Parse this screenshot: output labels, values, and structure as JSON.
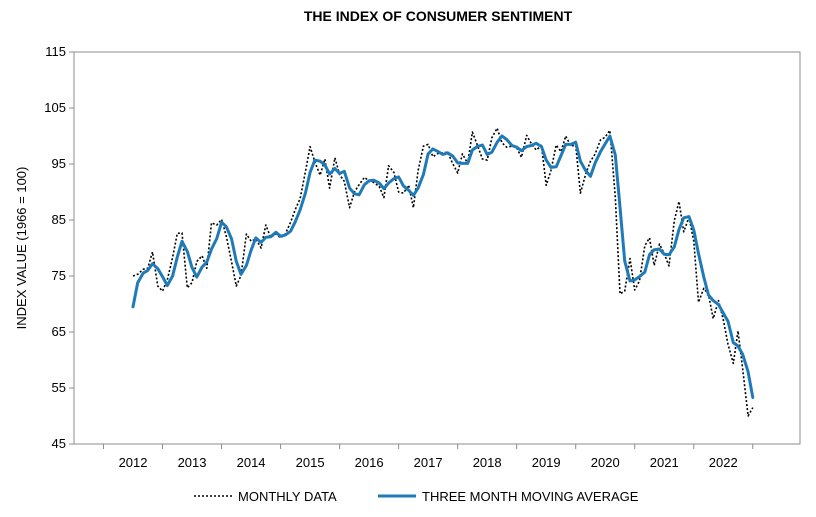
{
  "chart_data": {
    "type": "line",
    "title": "THE INDEX OF CONSUMER SENTIMENT",
    "ylabel": "INDEX VALUE (1966 = 100)",
    "xlabel": "",
    "ylim": [
      45,
      115
    ],
    "yticks": [
      45,
      55,
      65,
      75,
      85,
      95,
      105,
      115
    ],
    "xlim": [
      2011,
      2023.3
    ],
    "xticks": [
      2012,
      2013,
      2014,
      2015,
      2016,
      2017,
      2018,
      2019,
      2020,
      2021,
      2022
    ],
    "grid": false,
    "legend_position": "bottom",
    "series": [
      {
        "name": "MONTHLY DATA",
        "style": "dotted",
        "color": "#000000",
        "points": [
          [
            2012.0,
            75.0
          ],
          [
            2012.08,
            75.3
          ],
          [
            2012.17,
            76.2
          ],
          [
            2012.25,
            76.4
          ],
          [
            2012.33,
            79.3
          ],
          [
            2012.42,
            73.2
          ],
          [
            2012.5,
            72.3
          ],
          [
            2012.58,
            74.3
          ],
          [
            2012.67,
            78.3
          ],
          [
            2012.75,
            82.6
          ],
          [
            2012.83,
            82.7
          ],
          [
            2012.92,
            72.9
          ],
          [
            2013.0,
            73.8
          ],
          [
            2013.08,
            77.6
          ],
          [
            2013.17,
            78.6
          ],
          [
            2013.25,
            76.4
          ],
          [
            2013.33,
            84.5
          ],
          [
            2013.42,
            84.1
          ],
          [
            2013.5,
            85.1
          ],
          [
            2013.58,
            82.1
          ],
          [
            2013.67,
            77.5
          ],
          [
            2013.75,
            73.2
          ],
          [
            2013.83,
            75.1
          ],
          [
            2013.92,
            82.5
          ],
          [
            2014.0,
            81.2
          ],
          [
            2014.08,
            81.6
          ],
          [
            2014.17,
            80.0
          ],
          [
            2014.25,
            84.1
          ],
          [
            2014.33,
            81.9
          ],
          [
            2014.42,
            82.5
          ],
          [
            2014.5,
            81.8
          ],
          [
            2014.58,
            82.5
          ],
          [
            2014.67,
            84.6
          ],
          [
            2014.75,
            86.9
          ],
          [
            2014.83,
            88.8
          ],
          [
            2014.92,
            93.6
          ],
          [
            2015.0,
            98.1
          ],
          [
            2015.08,
            95.4
          ],
          [
            2015.17,
            93.0
          ],
          [
            2015.25,
            95.9
          ],
          [
            2015.33,
            90.7
          ],
          [
            2015.42,
            96.1
          ],
          [
            2015.5,
            93.1
          ],
          [
            2015.58,
            91.9
          ],
          [
            2015.67,
            87.2
          ],
          [
            2015.75,
            90.0
          ],
          [
            2015.83,
            91.3
          ],
          [
            2015.92,
            92.6
          ],
          [
            2016.0,
            92.0
          ],
          [
            2016.08,
            91.7
          ],
          [
            2016.17,
            91.0
          ],
          [
            2016.25,
            89.0
          ],
          [
            2016.33,
            94.7
          ],
          [
            2016.42,
            93.5
          ],
          [
            2016.5,
            90.0
          ],
          [
            2016.58,
            89.8
          ],
          [
            2016.67,
            91.2
          ],
          [
            2016.75,
            87.2
          ],
          [
            2016.83,
            93.8
          ],
          [
            2016.92,
            98.2
          ],
          [
            2017.0,
            98.5
          ],
          [
            2017.08,
            96.3
          ],
          [
            2017.17,
            96.9
          ],
          [
            2017.25,
            97.0
          ],
          [
            2017.33,
            97.1
          ],
          [
            2017.42,
            95.0
          ],
          [
            2017.5,
            93.4
          ],
          [
            2017.58,
            96.8
          ],
          [
            2017.67,
            95.1
          ],
          [
            2017.75,
            100.7
          ],
          [
            2017.83,
            98.5
          ],
          [
            2017.92,
            95.9
          ],
          [
            2018.0,
            95.7
          ],
          [
            2018.08,
            99.7
          ],
          [
            2018.17,
            101.4
          ],
          [
            2018.25,
            98.8
          ],
          [
            2018.33,
            98.0
          ],
          [
            2018.42,
            98.2
          ],
          [
            2018.5,
            97.9
          ],
          [
            2018.58,
            96.2
          ],
          [
            2018.67,
            100.1
          ],
          [
            2018.75,
            98.6
          ],
          [
            2018.83,
            97.5
          ],
          [
            2018.92,
            98.3
          ],
          [
            2019.0,
            91.2
          ],
          [
            2019.08,
            93.8
          ],
          [
            2019.17,
            98.4
          ],
          [
            2019.25,
            97.2
          ],
          [
            2019.33,
            100.0
          ],
          [
            2019.42,
            98.2
          ],
          [
            2019.5,
            98.4
          ],
          [
            2019.58,
            89.8
          ],
          [
            2019.67,
            93.2
          ],
          [
            2019.75,
            95.5
          ],
          [
            2019.83,
            96.8
          ],
          [
            2019.92,
            99.3
          ],
          [
            2020.0,
            99.8
          ],
          [
            2020.08,
            101.0
          ],
          [
            2020.17,
            89.1
          ],
          [
            2020.25,
            71.8
          ],
          [
            2020.33,
            72.3
          ],
          [
            2020.42,
            78.1
          ],
          [
            2020.5,
            72.5
          ],
          [
            2020.58,
            74.1
          ],
          [
            2020.67,
            80.4
          ],
          [
            2020.75,
            81.8
          ],
          [
            2020.83,
            76.9
          ],
          [
            2020.92,
            80.7
          ],
          [
            2021.0,
            79.0
          ],
          [
            2021.08,
            76.8
          ],
          [
            2021.17,
            84.9
          ],
          [
            2021.25,
            88.3
          ],
          [
            2021.33,
            82.9
          ],
          [
            2021.42,
            85.5
          ],
          [
            2021.5,
            81.2
          ],
          [
            2021.58,
            70.3
          ],
          [
            2021.67,
            72.8
          ],
          [
            2021.75,
            71.7
          ],
          [
            2021.83,
            67.4
          ],
          [
            2021.92,
            70.6
          ],
          [
            2022.0,
            67.2
          ],
          [
            2022.08,
            62.8
          ],
          [
            2022.17,
            59.4
          ],
          [
            2022.25,
            65.2
          ],
          [
            2022.33,
            58.4
          ],
          [
            2022.42,
            50.0
          ],
          [
            2022.5,
            51.5
          ]
        ]
      },
      {
        "name": "THREE MONTH MOVING AVERAGE",
        "style": "solid",
        "color": "#1f7bb8",
        "points": [
          [
            2012.0,
            69.5
          ],
          [
            2012.08,
            73.8
          ],
          [
            2012.17,
            75.5
          ],
          [
            2012.25,
            76.0
          ],
          [
            2012.33,
            77.2
          ],
          [
            2012.42,
            76.3
          ],
          [
            2012.5,
            74.9
          ],
          [
            2012.58,
            73.3
          ],
          [
            2012.67,
            75.0
          ],
          [
            2012.75,
            78.4
          ],
          [
            2012.83,
            81.2
          ],
          [
            2012.92,
            79.4
          ],
          [
            2013.0,
            76.5
          ],
          [
            2013.08,
            74.8
          ],
          [
            2013.17,
            76.6
          ],
          [
            2013.25,
            77.5
          ],
          [
            2013.33,
            79.8
          ],
          [
            2013.42,
            81.7
          ],
          [
            2013.5,
            84.6
          ],
          [
            2013.58,
            83.8
          ],
          [
            2013.67,
            81.6
          ],
          [
            2013.75,
            77.6
          ],
          [
            2013.83,
            75.3
          ],
          [
            2013.92,
            76.9
          ],
          [
            2014.0,
            79.6
          ],
          [
            2014.08,
            81.8
          ],
          [
            2014.17,
            81.0
          ],
          [
            2014.25,
            81.9
          ],
          [
            2014.33,
            82.0
          ],
          [
            2014.42,
            82.8
          ],
          [
            2014.5,
            82.1
          ],
          [
            2014.58,
            82.3
          ],
          [
            2014.67,
            83.0
          ],
          [
            2014.75,
            84.7
          ],
          [
            2014.83,
            86.8
          ],
          [
            2014.92,
            89.8
          ],
          [
            2015.0,
            93.5
          ],
          [
            2015.08,
            95.7
          ],
          [
            2015.17,
            95.5
          ],
          [
            2015.25,
            94.8
          ],
          [
            2015.33,
            93.2
          ],
          [
            2015.42,
            94.2
          ],
          [
            2015.5,
            93.3
          ],
          [
            2015.58,
            93.7
          ],
          [
            2015.67,
            90.7
          ],
          [
            2015.75,
            89.7
          ],
          [
            2015.83,
            89.5
          ],
          [
            2015.92,
            91.3
          ],
          [
            2016.0,
            92.0
          ],
          [
            2016.08,
            92.1
          ],
          [
            2016.17,
            91.6
          ],
          [
            2016.25,
            90.6
          ],
          [
            2016.33,
            91.6
          ],
          [
            2016.42,
            92.4
          ],
          [
            2016.5,
            92.7
          ],
          [
            2016.58,
            91.1
          ],
          [
            2016.67,
            90.3
          ],
          [
            2016.75,
            89.4
          ],
          [
            2016.83,
            90.7
          ],
          [
            2016.92,
            93.1
          ],
          [
            2017.0,
            96.8
          ],
          [
            2017.08,
            97.7
          ],
          [
            2017.17,
            97.2
          ],
          [
            2017.25,
            96.7
          ],
          [
            2017.33,
            97.0
          ],
          [
            2017.42,
            96.4
          ],
          [
            2017.5,
            95.2
          ],
          [
            2017.58,
            95.1
          ],
          [
            2017.67,
            95.1
          ],
          [
            2017.75,
            97.5
          ],
          [
            2017.83,
            98.1
          ],
          [
            2017.92,
            98.4
          ],
          [
            2018.0,
            96.7
          ],
          [
            2018.08,
            97.1
          ],
          [
            2018.17,
            98.9
          ],
          [
            2018.25,
            100.0
          ],
          [
            2018.33,
            99.4
          ],
          [
            2018.42,
            98.3
          ],
          [
            2018.5,
            98.0
          ],
          [
            2018.58,
            97.4
          ],
          [
            2018.67,
            98.1
          ],
          [
            2018.75,
            98.3
          ],
          [
            2018.83,
            98.7
          ],
          [
            2018.92,
            98.1
          ],
          [
            2019.0,
            95.7
          ],
          [
            2019.08,
            94.4
          ],
          [
            2019.17,
            94.5
          ],
          [
            2019.25,
            96.5
          ],
          [
            2019.33,
            98.5
          ],
          [
            2019.42,
            98.5
          ],
          [
            2019.5,
            98.9
          ],
          [
            2019.58,
            95.5
          ],
          [
            2019.67,
            93.8
          ],
          [
            2019.75,
            92.8
          ],
          [
            2019.83,
            95.2
          ],
          [
            2019.92,
            97.2
          ],
          [
            2020.0,
            98.6
          ],
          [
            2020.08,
            100.0
          ],
          [
            2020.17,
            96.6
          ],
          [
            2020.25,
            87.3
          ],
          [
            2020.33,
            77.7
          ],
          [
            2020.42,
            74.1
          ],
          [
            2020.5,
            74.3
          ],
          [
            2020.58,
            74.9
          ],
          [
            2020.67,
            75.7
          ],
          [
            2020.75,
            78.8
          ],
          [
            2020.83,
            79.7
          ],
          [
            2020.92,
            79.8
          ],
          [
            2021.0,
            78.9
          ],
          [
            2021.08,
            78.8
          ],
          [
            2021.17,
            80.2
          ],
          [
            2021.25,
            83.3
          ],
          [
            2021.33,
            85.4
          ],
          [
            2021.42,
            85.6
          ],
          [
            2021.5,
            83.2
          ],
          [
            2021.58,
            79.0
          ],
          [
            2021.67,
            74.8
          ],
          [
            2021.75,
            71.6
          ],
          [
            2021.83,
            70.6
          ],
          [
            2021.92,
            69.9
          ],
          [
            2022.0,
            68.4
          ],
          [
            2022.08,
            66.9
          ],
          [
            2022.17,
            63.1
          ],
          [
            2022.25,
            62.5
          ],
          [
            2022.33,
            61.0
          ],
          [
            2022.42,
            57.9
          ],
          [
            2022.5,
            53.3
          ]
        ]
      }
    ]
  }
}
